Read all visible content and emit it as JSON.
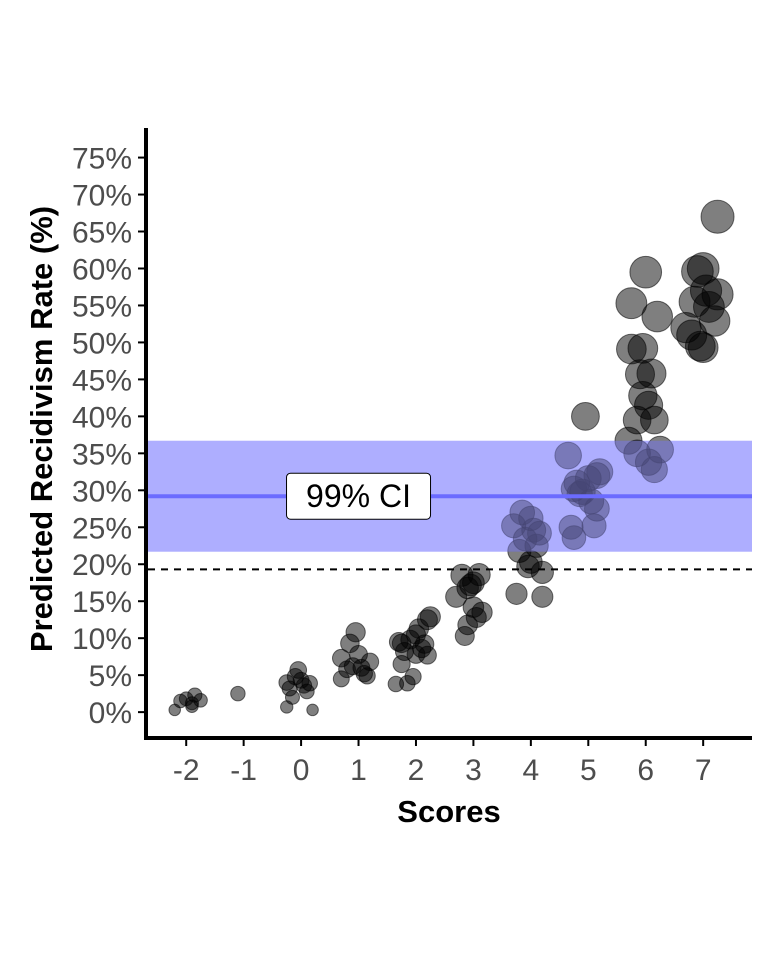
{
  "chart_data": {
    "type": "scatter",
    "title": "",
    "xlabel": "Scores",
    "ylabel": "Predicted Recidivism Rate (%)",
    "xlim": [
      -2.7,
      7.85
    ],
    "ylim": [
      -3.5,
      79
    ],
    "x_ticks": [
      -2,
      -1,
      0,
      1,
      2,
      3,
      4,
      5,
      6,
      7
    ],
    "x_tick_labels": [
      "-2",
      "-1",
      "0",
      "1",
      "2",
      "3",
      "4",
      "5",
      "6",
      "7"
    ],
    "y_ticks": [
      0,
      5,
      10,
      15,
      20,
      25,
      30,
      35,
      40,
      45,
      50,
      55,
      60,
      65,
      70,
      75
    ],
    "y_tick_labels": [
      "0%",
      "5%",
      "10%",
      "15%",
      "20%",
      "25%",
      "30%",
      "35%",
      "40%",
      "45%",
      "50%",
      "55%",
      "60%",
      "65%",
      "70%",
      "75%"
    ],
    "grid": false,
    "legend": "none",
    "reference_line": {
      "y": 19.3,
      "style": "dashed",
      "color": "#000000"
    },
    "ci_band": {
      "lower": 21.7,
      "upper": 36.7,
      "mean": 29.2,
      "label": "99% CI",
      "label_x": 1.0,
      "fill_color": "#8080ff",
      "line_color": "#6b6bff"
    },
    "point_color": "#000000",
    "highlight_color": "#9999ff",
    "points": [
      {
        "x": -2.2,
        "y": 0.3
      },
      {
        "x": -2.1,
        "y": 1.5
      },
      {
        "x": -2.0,
        "y": 1.8
      },
      {
        "x": -1.9,
        "y": 1.2
      },
      {
        "x": -1.85,
        "y": 2.3
      },
      {
        "x": -1.75,
        "y": 1.6
      },
      {
        "x": -1.9,
        "y": 0.8
      },
      {
        "x": -1.1,
        "y": 2.5
      },
      {
        "x": -0.25,
        "y": 4.0
      },
      {
        "x": -0.2,
        "y": 3.2
      },
      {
        "x": -0.15,
        "y": 2.0
      },
      {
        "x": -0.05,
        "y": 5.7
      },
      {
        "x": 0.0,
        "y": 4.3
      },
      {
        "x": 0.05,
        "y": 3.6
      },
      {
        "x": 0.1,
        "y": 2.8
      },
      {
        "x": 0.15,
        "y": 3.9
      },
      {
        "x": -0.1,
        "y": 4.8
      },
      {
        "x": 0.2,
        "y": 0.3
      },
      {
        "x": -0.25,
        "y": 0.7
      },
      {
        "x": 0.7,
        "y": 4.5
      },
      {
        "x": 0.7,
        "y": 7.3
      },
      {
        "x": 0.8,
        "y": 5.8
      },
      {
        "x": 0.85,
        "y": 9.3
      },
      {
        "x": 0.9,
        "y": 6.2
      },
      {
        "x": 0.95,
        "y": 10.8
      },
      {
        "x": 1.0,
        "y": 7.8
      },
      {
        "x": 1.05,
        "y": 6.0
      },
      {
        "x": 1.1,
        "y": 5.2
      },
      {
        "x": 1.2,
        "y": 6.8
      },
      {
        "x": 1.15,
        "y": 4.9
      },
      {
        "x": 1.65,
        "y": 3.8
      },
      {
        "x": 1.7,
        "y": 9.5
      },
      {
        "x": 1.75,
        "y": 6.5
      },
      {
        "x": 1.8,
        "y": 8.2
      },
      {
        "x": 1.85,
        "y": 3.9
      },
      {
        "x": 1.9,
        "y": 9.8
      },
      {
        "x": 1.95,
        "y": 4.8
      },
      {
        "x": 2.0,
        "y": 10.5
      },
      {
        "x": 2.0,
        "y": 7.8
      },
      {
        "x": 2.05,
        "y": 11.3
      },
      {
        "x": 2.1,
        "y": 8.6
      },
      {
        "x": 2.15,
        "y": 9.2
      },
      {
        "x": 2.2,
        "y": 12.5
      },
      {
        "x": 2.2,
        "y": 7.7
      },
      {
        "x": 1.75,
        "y": 9.3
      },
      {
        "x": 2.25,
        "y": 12.9
      },
      {
        "x": 2.7,
        "y": 15.6
      },
      {
        "x": 2.8,
        "y": 18.5
      },
      {
        "x": 2.85,
        "y": 10.3
      },
      {
        "x": 2.9,
        "y": 11.8
      },
      {
        "x": 2.9,
        "y": 16.8
      },
      {
        "x": 3.0,
        "y": 17.5
      },
      {
        "x": 3.0,
        "y": 14.2
      },
      {
        "x": 3.05,
        "y": 12.8
      },
      {
        "x": 3.1,
        "y": 18.6
      },
      {
        "x": 3.15,
        "y": 13.5
      },
      {
        "x": 2.95,
        "y": 17.2
      },
      {
        "x": 3.75,
        "y": 16.0
      },
      {
        "x": 3.7,
        "y": 25.2
      },
      {
        "x": 3.8,
        "y": 21.8
      },
      {
        "x": 3.85,
        "y": 27.0
      },
      {
        "x": 3.9,
        "y": 23.4
      },
      {
        "x": 3.95,
        "y": 19.7
      },
      {
        "x": 4.0,
        "y": 20.3
      },
      {
        "x": 4.0,
        "y": 26.2
      },
      {
        "x": 4.05,
        "y": 24.6
      },
      {
        "x": 4.1,
        "y": 22.5
      },
      {
        "x": 4.15,
        "y": 24.2
      },
      {
        "x": 4.2,
        "y": 18.9
      },
      {
        "x": 4.2,
        "y": 15.6
      },
      {
        "x": 4.65,
        "y": 34.7
      },
      {
        "x": 4.7,
        "y": 25.0
      },
      {
        "x": 4.75,
        "y": 23.6
      },
      {
        "x": 4.75,
        "y": 30.2
      },
      {
        "x": 4.8,
        "y": 31.0
      },
      {
        "x": 4.85,
        "y": 29.5
      },
      {
        "x": 4.9,
        "y": 29.8
      },
      {
        "x": 4.95,
        "y": 40.0
      },
      {
        "x": 5.0,
        "y": 31.6
      },
      {
        "x": 5.05,
        "y": 28.5
      },
      {
        "x": 5.1,
        "y": 25.2
      },
      {
        "x": 5.15,
        "y": 32.0
      },
      {
        "x": 5.2,
        "y": 32.5
      },
      {
        "x": 5.15,
        "y": 27.5
      },
      {
        "x": 5.7,
        "y": 36.7
      },
      {
        "x": 5.75,
        "y": 49.1
      },
      {
        "x": 5.75,
        "y": 55.3
      },
      {
        "x": 5.85,
        "y": 35.0
      },
      {
        "x": 5.85,
        "y": 39.5
      },
      {
        "x": 5.9,
        "y": 45.7
      },
      {
        "x": 5.95,
        "y": 42.8
      },
      {
        "x": 5.95,
        "y": 49.2
      },
      {
        "x": 6.0,
        "y": 59.5
      },
      {
        "x": 6.05,
        "y": 33.8
      },
      {
        "x": 6.05,
        "y": 41.5
      },
      {
        "x": 6.1,
        "y": 45.8
      },
      {
        "x": 6.15,
        "y": 32.8
      },
      {
        "x": 6.15,
        "y": 39.5
      },
      {
        "x": 6.2,
        "y": 53.5
      },
      {
        "x": 6.25,
        "y": 35.5
      },
      {
        "x": 6.7,
        "y": 52.0
      },
      {
        "x": 6.8,
        "y": 51.0
      },
      {
        "x": 6.85,
        "y": 55.5
      },
      {
        "x": 6.9,
        "y": 59.6
      },
      {
        "x": 6.95,
        "y": 49.5
      },
      {
        "x": 7.0,
        "y": 60.0
      },
      {
        "x": 7.05,
        "y": 57.0
      },
      {
        "x": 7.0,
        "y": 49.3
      },
      {
        "x": 7.1,
        "y": 54.8
      },
      {
        "x": 7.2,
        "y": 52.9
      },
      {
        "x": 7.25,
        "y": 56.5
      },
      {
        "x": 7.25,
        "y": 67.0
      }
    ]
  }
}
